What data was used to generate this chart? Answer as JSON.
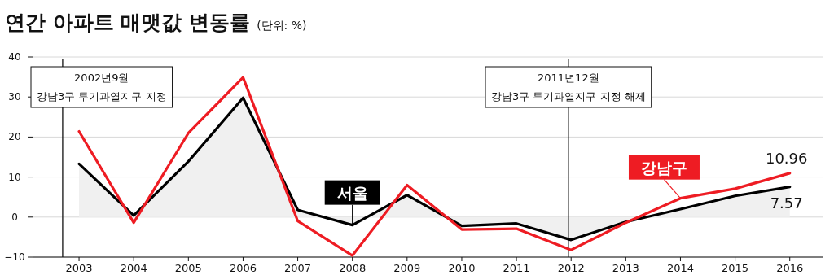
{
  "chart_data": {
    "type": "line",
    "title": "연간 아파트 매맷값 변동률",
    "subtitle": "(단위: %)",
    "x": [
      2003,
      2004,
      2005,
      2006,
      2007,
      2008,
      2009,
      2010,
      2011,
      2012,
      2013,
      2014,
      2015,
      2016
    ],
    "xlim": [
      2002.15,
      2016.6
    ],
    "xticks": [
      2003,
      2004,
      2005,
      2006,
      2007,
      2008,
      2009,
      2010,
      2011,
      2012,
      2013,
      2014,
      2015,
      2016
    ],
    "ylim": [
      -10,
      40
    ],
    "yticks": [
      -10,
      0,
      10,
      20,
      30,
      40
    ],
    "grid": "y",
    "series": [
      {
        "name": "서울",
        "type": "area",
        "color": "#000000",
        "values": [
          13.3,
          0.4,
          13.9,
          29.8,
          1.8,
          -2,
          5.5,
          -2.2,
          -1.6,
          -5.7,
          -1.2,
          2,
          5.3,
          7.57
        ],
        "value_labels": [
          null,
          null,
          null,
          null,
          null,
          null,
          null,
          null,
          null,
          null,
          null,
          null,
          null,
          "7.57"
        ]
      },
      {
        "name": "강남구",
        "color": "#ee1c23",
        "values": [
          21.4,
          -1.4,
          21,
          34.9,
          -1,
          -9.6,
          8,
          -3.1,
          -2.9,
          -8.2,
          -1.4,
          4.7,
          7.1,
          10.96
        ],
        "value_labels": [
          null,
          null,
          null,
          null,
          null,
          null,
          null,
          null,
          null,
          null,
          null,
          null,
          null,
          "10.96"
        ]
      }
    ],
    "ref_lines": [
      {
        "axis": "x",
        "value": 2002.7,
        "label": "2002년9월\n강남3구 투기과열지구 지정"
      },
      {
        "axis": "x",
        "value": 2011.95,
        "label": "2011년12월\n강남3구 투기과열지구 지정 해제"
      }
    ]
  }
}
